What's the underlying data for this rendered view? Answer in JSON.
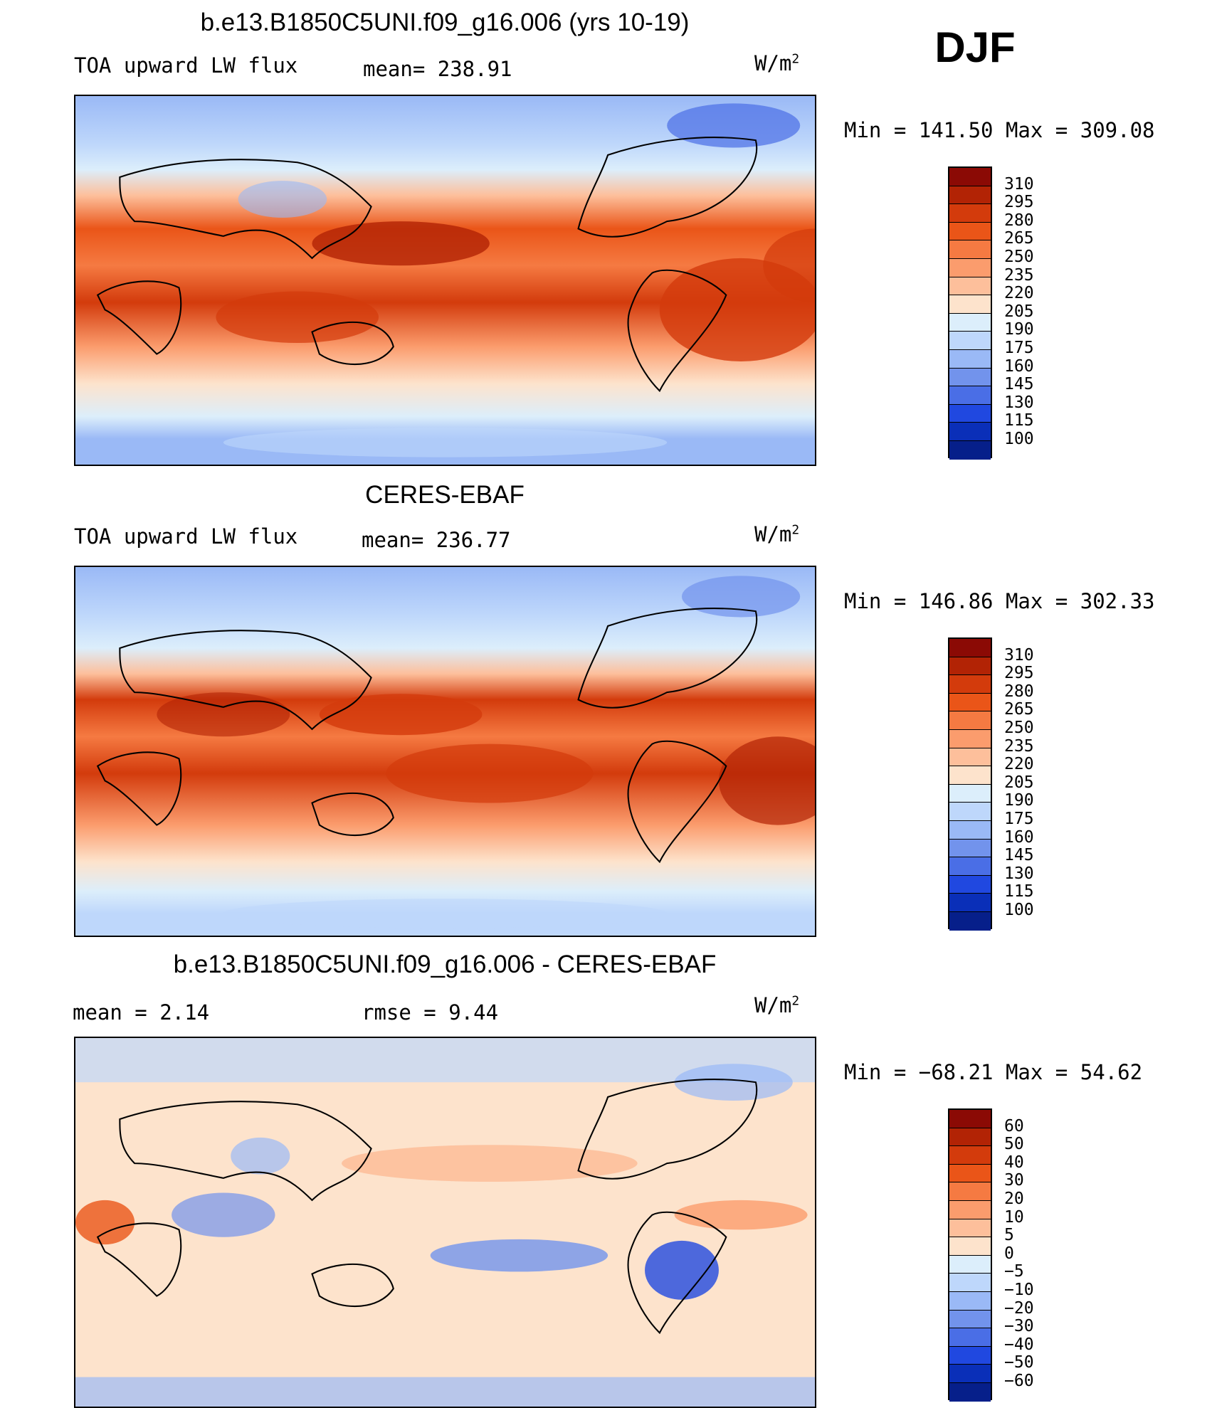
{
  "season": "DJF",
  "chart_data": [
    {
      "type": "heatmap",
      "title": "b.e13.B1850C5UNI.f09_g16.006 (yrs 10-19)",
      "variable": "TOA upward LW flux",
      "mean_text": "mean= 238.91",
      "units": "W/m",
      "units_exp": "2",
      "minmax_text": "Min = 141.50 Max = 309.08",
      "min": 141.5,
      "max": 309.08,
      "mean": 238.91,
      "projection": "cylindrical equidistant, centered on dateline",
      "colorbar": {
        "labels": [
          "310",
          "295",
          "280",
          "265",
          "250",
          "235",
          "220",
          "205",
          "190",
          "175",
          "160",
          "145",
          "130",
          "115",
          "100"
        ],
        "colors": [
          "#8b0a05",
          "#b22305",
          "#d33b0c",
          "#ea5518",
          "#f57a42",
          "#fb9c6d",
          "#fdbf9b",
          "#fde3cc",
          "#dceefb",
          "#bed7fb",
          "#9ab9f6",
          "#7293ec",
          "#4a6ee6",
          "#2048e0",
          "#0a2fb8",
          "#061f8a"
        ]
      }
    },
    {
      "type": "heatmap",
      "title": "CERES-EBAF",
      "variable": "TOA upward LW flux",
      "mean_text": "mean= 236.77",
      "units": "W/m",
      "units_exp": "2",
      "minmax_text": "Min = 146.86 Max = 302.33",
      "min": 146.86,
      "max": 302.33,
      "mean": 236.77,
      "colorbar": {
        "labels": [
          "310",
          "295",
          "280",
          "265",
          "250",
          "235",
          "220",
          "205",
          "190",
          "175",
          "160",
          "145",
          "130",
          "115",
          "100"
        ],
        "colors": [
          "#8b0a05",
          "#b22305",
          "#d33b0c",
          "#ea5518",
          "#f57a42",
          "#fb9c6d",
          "#fdbf9b",
          "#fde3cc",
          "#dceefb",
          "#bed7fb",
          "#9ab9f6",
          "#7293ec",
          "#4a6ee6",
          "#2048e0",
          "#0a2fb8",
          "#061f8a"
        ]
      }
    },
    {
      "type": "heatmap",
      "title": "b.e13.B1850C5UNI.f09_g16.006 - CERES-EBAF",
      "mean_text": "mean =    2.14",
      "rmse_text": "rmse =    9.44",
      "units": "W/m",
      "units_exp": "2",
      "minmax_text": "Min = −68.21 Max =   54.62",
      "min": -68.21,
      "max": 54.62,
      "mean": 2.14,
      "rmse": 9.44,
      "colorbar": {
        "labels": [
          "60",
          "50",
          "40",
          "30",
          "20",
          "10",
          "5",
          "0",
          "−5",
          "−10",
          "−20",
          "−30",
          "−40",
          "−50",
          "−60"
        ],
        "colors": [
          "#8b0a05",
          "#b22305",
          "#d33b0c",
          "#ea5518",
          "#f57a42",
          "#fb9c6d",
          "#fdbf9b",
          "#fde3cc",
          "#dceefb",
          "#bed7fb",
          "#9ab9f6",
          "#7293ec",
          "#4a6ee6",
          "#2048e0",
          "#0a2fb8",
          "#061f8a"
        ]
      }
    }
  ]
}
